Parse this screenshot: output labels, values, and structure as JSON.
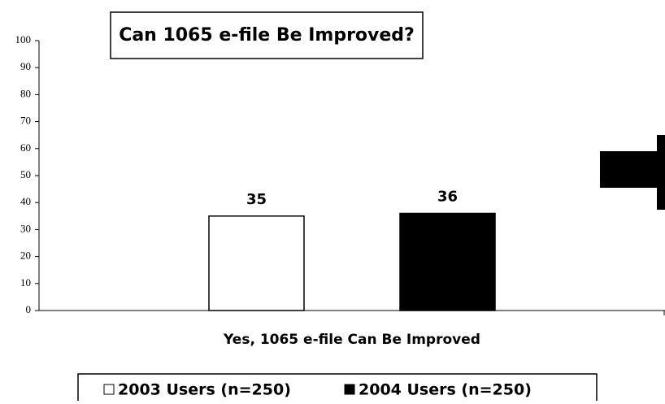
{
  "chart_data": {
    "type": "bar",
    "title": "Can 1065 e-file Be Improved?",
    "categories": [
      "Yes, 1065 e-file Can Be Improved"
    ],
    "series": [
      {
        "name": "2003 Users (n=250)",
        "color": "#ffffff",
        "values": [
          35
        ]
      },
      {
        "name": "2004 Users (n=250)",
        "color": "#000000",
        "values": [
          36
        ]
      }
    ],
    "ylim": [
      0,
      100
    ],
    "yticks": [
      0,
      10,
      20,
      30,
      40,
      50,
      60,
      70,
      80,
      90,
      100
    ],
    "grid": false,
    "legend": "bottom"
  }
}
